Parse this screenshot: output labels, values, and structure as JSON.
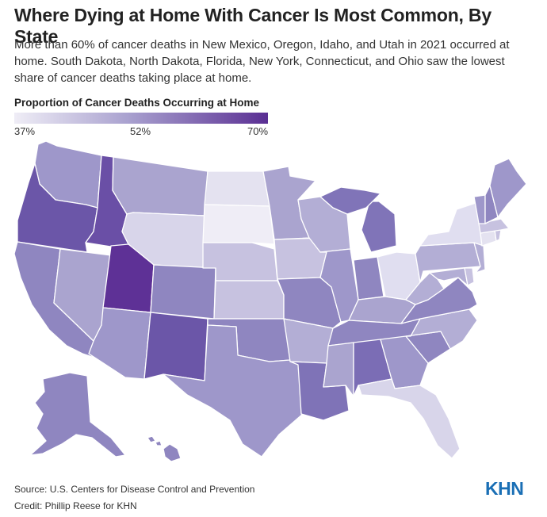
{
  "title": "Where Dying at Home With Cancer Is Most Common, By State",
  "subtitle": "More than 60% of cancer deaths in New Mexico, Oregon, Idaho, and Utah in 2021 occurred at home. South Dakota, North Dakota, Florida, New York, Connecticut, and Ohio saw the lowest share of cancer deaths taking place at home.",
  "legend": {
    "title": "Proportion of Cancer Deaths Occurring at Home",
    "min_label": "37%",
    "mid_label": "52%",
    "max_label": "70%",
    "colors": {
      "low": "#efedf6",
      "mid": "#a9a1cf",
      "high": "#5a2f93"
    }
  },
  "footer": {
    "source": "Source: U.S. Centers for Disease Control and Prevention",
    "credit": "Credit: Phillip Reese for KHN"
  },
  "logo": "KHN",
  "map_colors": {
    "WA": "#9e97ca",
    "OR": "#6b56a8",
    "CA": "#8f86c0",
    "NV": "#aaa4cf",
    "ID": "#6a4fa6",
    "MT": "#aaa4cf",
    "WY": "#d8d5ea",
    "UT": "#5e3196",
    "AZ": "#9e97ca",
    "CO": "#8f86c0",
    "NM": "#6b56a8",
    "ND": "#e4e2f0",
    "SD": "#efedf6",
    "NE": "#c7c2e0",
    "KS": "#c7c2e0",
    "OK": "#8f86c0",
    "TX": "#9e97ca",
    "MN": "#aaa4cf",
    "IA": "#c7c2e0",
    "MO": "#8f86c0",
    "AR": "#b3aed5",
    "LA": "#7f73b7",
    "WI": "#b3aed5",
    "IL": "#9e97ca",
    "MI": "#8074b8",
    "IN": "#8f86c0",
    "OH": "#e0def0",
    "KY": "#aaa4cf",
    "TN": "#8f86c0",
    "MS": "#aaa4cf",
    "AL": "#7b6db5",
    "GA": "#9e97ca",
    "FL": "#d8d5ea",
    "SC": "#8f86c0",
    "NC": "#b3aed5",
    "VA": "#8f86c0",
    "WV": "#b3aed5",
    "PA": "#b3aed5",
    "NY": "#e0def0",
    "NJ": "#b3aed5",
    "DE": "#c7c2e0",
    "MD": "#b3aed5",
    "CT": "#e4e2f0",
    "RI": "#c7c2e0",
    "MA": "#c7c2e0",
    "VT": "#9e97ca",
    "NH": "#8f86c0",
    "ME": "#9e97ca",
    "AK": "#8f86c0",
    "HI": "#8f86c0"
  }
}
